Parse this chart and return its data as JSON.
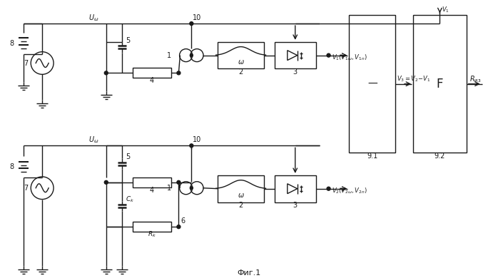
{
  "bg_color": "#ffffff",
  "line_color": "#1a1a1a",
  "fig_width": 6.98,
  "fig_height": 3.9,
  "title": "Фиг.1",
  "title_fontsize": 8
}
